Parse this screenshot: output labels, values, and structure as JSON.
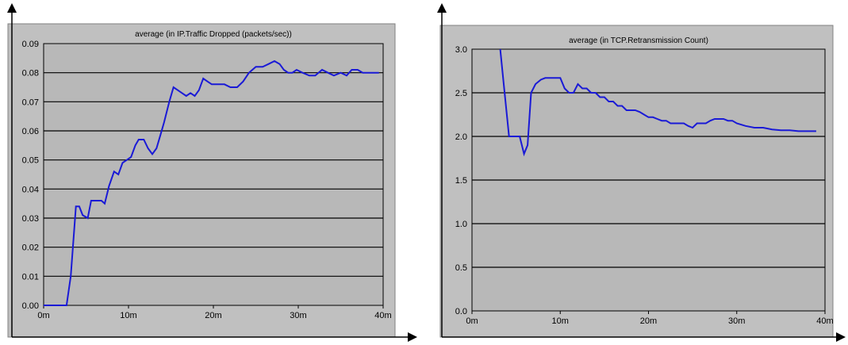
{
  "colors": {
    "panel": "#c0c0c0",
    "plot_background": "#b8b8b8",
    "grid": "#000000",
    "series": "#1a1ad6",
    "axis_arrow": "#000000"
  },
  "chart_data": [
    {
      "type": "line",
      "title": "average (in IP.Traffic Dropped (packets/sec))",
      "xlabel": "",
      "ylabel": "",
      "x_ticks": [
        "0m",
        "10m",
        "20m",
        "30m",
        "40m"
      ],
      "y_ticks": [
        "0.00",
        "0.01",
        "0.02",
        "0.03",
        "0.04",
        "0.05",
        "0.06",
        "0.07",
        "0.08",
        "0.09"
      ],
      "xlim": [
        0,
        40
      ],
      "ylim": [
        0,
        0.09
      ],
      "grid": "horizontal",
      "series": [
        {
          "x": [
            0,
            1,
            2,
            2.7,
            3.2,
            3.8,
            4.2,
            4.6,
            5.2,
            5.6,
            6.2,
            6.8,
            7.2,
            7.7,
            8.3,
            8.8,
            9.3,
            9.8,
            10.3,
            10.8,
            11.2,
            11.8,
            12.3,
            12.8,
            13.3,
            13.8,
            14.2,
            14.8,
            15.3,
            15.8,
            16.3,
            16.8,
            17.3,
            17.8,
            18.3,
            18.8,
            19.3,
            19.8,
            20.5,
            21.3,
            22.0,
            22.8,
            23.5,
            24.2,
            25.0,
            25.8,
            26.5,
            27.2,
            27.8,
            28.3,
            28.8,
            29.3,
            29.8,
            30.5,
            31.3,
            32.0,
            32.8,
            33.5,
            34.2,
            35.0,
            35.7,
            36.3,
            37.0,
            37.6,
            38.2,
            38.8,
            39.5
          ],
          "y": [
            0.0,
            0.0,
            0.0,
            0.0,
            0.01,
            0.034,
            0.034,
            0.031,
            0.03,
            0.036,
            0.036,
            0.036,
            0.035,
            0.041,
            0.046,
            0.045,
            0.049,
            0.05,
            0.051,
            0.055,
            0.057,
            0.057,
            0.054,
            0.052,
            0.054,
            0.059,
            0.063,
            0.07,
            0.075,
            0.074,
            0.073,
            0.072,
            0.073,
            0.072,
            0.074,
            0.078,
            0.077,
            0.076,
            0.076,
            0.076,
            0.075,
            0.075,
            0.077,
            0.08,
            0.082,
            0.082,
            0.083,
            0.084,
            0.083,
            0.081,
            0.08,
            0.08,
            0.081,
            0.08,
            0.079,
            0.079,
            0.081,
            0.08,
            0.079,
            0.08,
            0.079,
            0.081,
            0.081,
            0.08,
            0.08,
            0.08,
            0.08
          ]
        }
      ]
    },
    {
      "type": "line",
      "title": "average (in TCP.Retransmission Count)",
      "xlabel": "",
      "ylabel": "",
      "x_ticks": [
        "0m",
        "10m",
        "20m",
        "30m",
        "40m"
      ],
      "y_ticks": [
        "0.0",
        "0.5",
        "1.0",
        "1.5",
        "2.0",
        "2.5",
        "3.0"
      ],
      "xlim": [
        0,
        40
      ],
      "ylim": [
        0,
        3.0
      ],
      "grid": "horizontal",
      "series": [
        {
          "x": [
            3.2,
            3.6,
            4.2,
            4.8,
            5.4,
            5.9,
            6.3,
            6.7,
            7.2,
            7.8,
            8.3,
            8.9,
            9.5,
            10.0,
            10.5,
            11.0,
            11.5,
            12.0,
            12.5,
            13.0,
            13.5,
            14.0,
            14.5,
            15.0,
            15.5,
            16.0,
            16.5,
            17.0,
            17.5,
            18.0,
            18.5,
            19.0,
            19.5,
            20.0,
            20.5,
            21.0,
            21.5,
            22.0,
            22.5,
            23.0,
            23.5,
            24.0,
            24.5,
            25.0,
            25.5,
            26.0,
            26.5,
            27.0,
            27.5,
            28.0,
            28.5,
            29.0,
            29.5,
            30.0,
            31.0,
            32.0,
            33.0,
            34.0,
            35.0,
            36.0,
            37.0,
            38.0,
            39.0
          ],
          "y": [
            3.0,
            2.6,
            2.0,
            2.0,
            2.0,
            1.8,
            1.9,
            2.5,
            2.6,
            2.65,
            2.67,
            2.67,
            2.67,
            2.67,
            2.55,
            2.5,
            2.5,
            2.6,
            2.55,
            2.55,
            2.5,
            2.5,
            2.45,
            2.45,
            2.4,
            2.4,
            2.35,
            2.35,
            2.3,
            2.3,
            2.3,
            2.28,
            2.25,
            2.22,
            2.22,
            2.2,
            2.18,
            2.18,
            2.15,
            2.15,
            2.15,
            2.15,
            2.12,
            2.1,
            2.15,
            2.15,
            2.15,
            2.18,
            2.2,
            2.2,
            2.2,
            2.18,
            2.18,
            2.15,
            2.12,
            2.1,
            2.1,
            2.08,
            2.07,
            2.07,
            2.06,
            2.06,
            2.06
          ]
        }
      ]
    }
  ]
}
